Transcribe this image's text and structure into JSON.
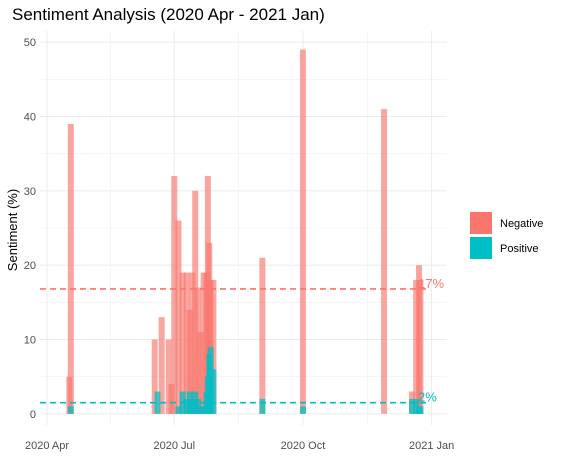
{
  "chart_data": {
    "type": "bar",
    "title": "Sentiment Analysis (2020 Apr - 2021 Jan)",
    "xlabel": "",
    "ylabel": "Sentiment (%)",
    "ylim": [
      -1.5,
      51.5
    ],
    "xlim": [
      "2020-03-27",
      "2021-01-12"
    ],
    "yticks": [
      0,
      10,
      20,
      30,
      40,
      50
    ],
    "xticks": [
      {
        "date": "2020-04-01",
        "label": "2020 Apr"
      },
      {
        "date": "2020-07-01",
        "label": "2020 Jul"
      },
      {
        "date": "2020-10-01",
        "label": "2020 Oct"
      },
      {
        "date": "2021-01-01",
        "label": "2021 Jan"
      }
    ],
    "grid": true,
    "legend": {
      "position": "right",
      "entries": [
        "Negative",
        "Positive"
      ]
    },
    "colors": {
      "Negative": "#F8766D",
      "Positive": "#00BFC4"
    },
    "series": [
      {
        "name": "Negative",
        "color": "#F8766D",
        "mean_label": "17%",
        "mean_value": 16.8,
        "points": [
          {
            "date": "2020-04-17",
            "value": 5
          },
          {
            "date": "2020-04-18",
            "value": 39
          },
          {
            "date": "2020-06-17",
            "value": 10
          },
          {
            "date": "2020-06-22",
            "value": 13
          },
          {
            "date": "2020-06-27",
            "value": 10
          },
          {
            "date": "2020-06-29",
            "value": 4
          },
          {
            "date": "2020-07-01",
            "value": 32
          },
          {
            "date": "2020-07-04",
            "value": 26
          },
          {
            "date": "2020-07-07",
            "value": 19
          },
          {
            "date": "2020-07-10",
            "value": 19
          },
          {
            "date": "2020-07-12",
            "value": 14
          },
          {
            "date": "2020-07-14",
            "value": 19
          },
          {
            "date": "2020-07-16",
            "value": 30
          },
          {
            "date": "2020-07-18",
            "value": 17
          },
          {
            "date": "2020-07-20",
            "value": 11
          },
          {
            "date": "2020-07-22",
            "value": 19
          },
          {
            "date": "2020-07-24",
            "value": 19
          },
          {
            "date": "2020-07-25",
            "value": 32
          },
          {
            "date": "2020-07-26",
            "value": 23
          },
          {
            "date": "2020-07-27",
            "value": 18
          },
          {
            "date": "2020-07-29",
            "value": 18
          },
          {
            "date": "2020-09-02",
            "value": 21
          },
          {
            "date": "2020-10-01",
            "value": 49
          },
          {
            "date": "2020-11-28",
            "value": 41
          },
          {
            "date": "2020-12-18",
            "value": 3
          },
          {
            "date": "2020-12-21",
            "value": 18
          },
          {
            "date": "2020-12-23",
            "value": 20
          },
          {
            "date": "2020-12-24",
            "value": 18
          }
        ]
      },
      {
        "name": "Positive",
        "color": "#00BFC4",
        "mean_label": "2%",
        "mean_value": 1.5,
        "points": [
          {
            "date": "2020-04-18",
            "value": 1
          },
          {
            "date": "2020-06-19",
            "value": 3
          },
          {
            "date": "2020-07-04",
            "value": 1
          },
          {
            "date": "2020-07-07",
            "value": 3
          },
          {
            "date": "2020-07-10",
            "value": 2
          },
          {
            "date": "2020-07-12",
            "value": 3
          },
          {
            "date": "2020-07-14",
            "value": 2
          },
          {
            "date": "2020-07-16",
            "value": 3
          },
          {
            "date": "2020-07-18",
            "value": 2
          },
          {
            "date": "2020-07-20",
            "value": 1
          },
          {
            "date": "2020-07-22",
            "value": 1
          },
          {
            "date": "2020-07-24",
            "value": 3
          },
          {
            "date": "2020-07-25",
            "value": 5
          },
          {
            "date": "2020-07-26",
            "value": 8
          },
          {
            "date": "2020-07-27",
            "value": 9
          },
          {
            "date": "2020-07-29",
            "value": 6
          },
          {
            "date": "2020-09-02",
            "value": 2
          },
          {
            "date": "2020-10-01",
            "value": 1
          },
          {
            "date": "2020-12-18",
            "value": 2
          },
          {
            "date": "2020-12-21",
            "value": 2
          },
          {
            "date": "2020-12-23",
            "value": 1
          },
          {
            "date": "2020-12-24",
            "value": 1
          }
        ]
      }
    ]
  }
}
